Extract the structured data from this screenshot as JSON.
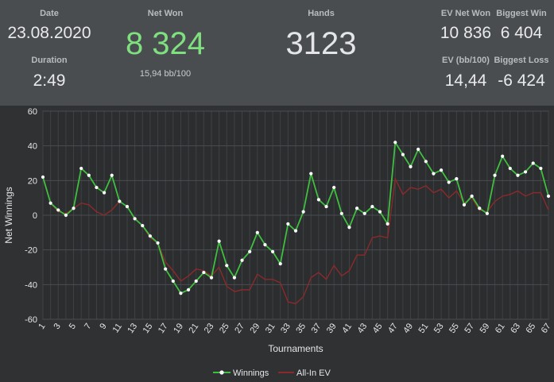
{
  "stats": {
    "date_label": "Date",
    "date_value": "23.08.2020",
    "duration_label": "Duration",
    "duration_value": "2:49",
    "netwon_label": "Net Won",
    "netwon_value": "8 324",
    "netwon_sub": "15,94 bb/100",
    "hands_label": "Hands",
    "hands_value": "3123",
    "ev_netwon_label": "EV Net Won",
    "ev_netwon_value": "10 836",
    "biggest_win_label": "Biggest Win",
    "biggest_win_value": "6 404",
    "ev_bb_label": "EV (bb/100)",
    "ev_bb_value": "14,44",
    "biggest_loss_label": "Biggest Loss",
    "biggest_loss_value": "-6 424"
  },
  "colors": {
    "winnings": "#3fbf3f",
    "allin": "#8b2a2a",
    "netwon": "#7fe07f"
  },
  "chart_data": {
    "type": "line",
    "xlabel": "Tournaments",
    "ylabel": "Net Winnings",
    "ylim": [
      -60,
      60
    ],
    "yticks": [
      60,
      40,
      20,
      0,
      -20,
      -40,
      -60
    ],
    "xlim": [
      1,
      67
    ],
    "xticks": [
      1,
      3,
      5,
      7,
      9,
      11,
      13,
      15,
      17,
      19,
      21,
      23,
      25,
      27,
      29,
      31,
      33,
      35,
      37,
      39,
      41,
      43,
      45,
      47,
      49,
      51,
      53,
      55,
      57,
      59,
      61,
      63,
      65,
      67
    ],
    "grid": true,
    "legend": "bottom",
    "series": [
      {
        "name": "Winnings",
        "values": [
          22,
          7,
          3,
          0,
          4,
          27,
          23,
          16,
          13,
          23,
          8,
          5,
          -2,
          -6,
          -12,
          -16,
          -31,
          -38,
          -45,
          -43,
          -38,
          -33,
          -36,
          -15,
          -29,
          -36,
          -26,
          -21,
          -10,
          -17,
          -21,
          -28,
          -5,
          -9,
          2,
          24,
          9,
          5,
          16,
          1,
          -7,
          4,
          1,
          5,
          2,
          -5,
          42,
          35,
          28,
          38,
          31,
          24,
          26,
          19,
          21,
          6,
          11,
          4,
          1,
          23,
          34,
          27,
          23,
          25,
          30,
          27,
          11
        ]
      },
      {
        "name": "All-In EV",
        "values": [
          22,
          7,
          2,
          1,
          4,
          7,
          6,
          2,
          0,
          3,
          8,
          5,
          -2,
          -6,
          -13,
          -16,
          -27,
          -32,
          -38,
          -35,
          -31,
          -32,
          -35,
          -30,
          -41,
          -44,
          -43,
          -43,
          -34,
          -37,
          -37,
          -39,
          -50,
          -51,
          -47,
          -36,
          -33,
          -37,
          -29,
          -35,
          -32,
          -23,
          -23,
          -13,
          -12,
          -13,
          21,
          12,
          16,
          15,
          17,
          13,
          15,
          10,
          14,
          7,
          10,
          3,
          2,
          8,
          11,
          12,
          14,
          11,
          13,
          13,
          3
        ]
      }
    ]
  }
}
